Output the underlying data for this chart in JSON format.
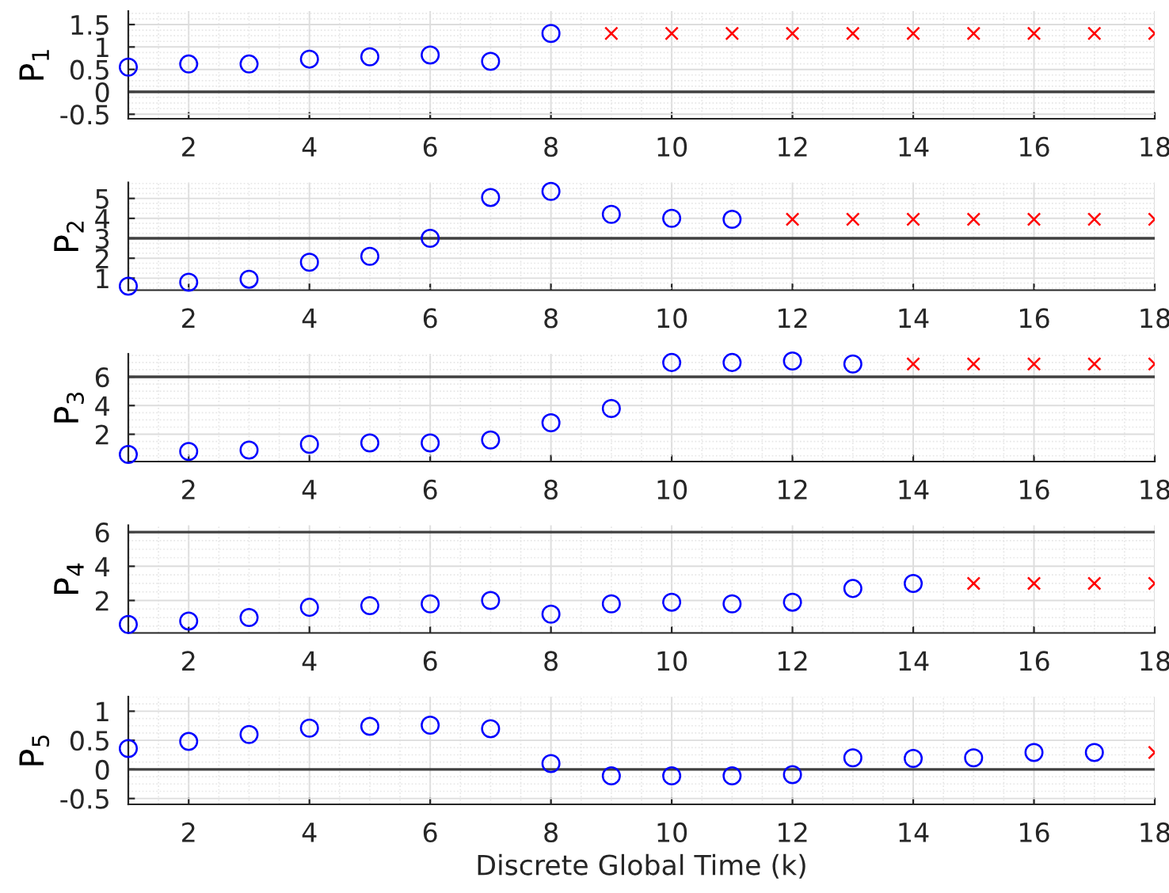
{
  "chart_data": [
    {
      "type": "scatter",
      "ylabel": "P$_{1}$",
      "xlim": [
        1,
        18
      ],
      "xticks": [
        2,
        4,
        6,
        8,
        10,
        12,
        14,
        16,
        18
      ],
      "ylim": [
        -0.6,
        1.8
      ],
      "yticks": [
        -0.5,
        0,
        0.5,
        1,
        1.5
      ],
      "grid": true,
      "ref_lines": [
        {
          "axis": "y",
          "value": 0,
          "color": "#404040"
        }
      ],
      "series": [
        {
          "color": "#0000ff",
          "marker": "circle",
          "x": [
            1,
            2,
            3,
            4,
            5,
            6,
            7,
            8
          ],
          "values": [
            0.55,
            0.62,
            0.62,
            0.73,
            0.78,
            0.82,
            0.68,
            1.3
          ]
        },
        {
          "color": "#ff0000",
          "marker": "cross",
          "x": [
            9,
            10,
            11,
            12,
            13,
            14,
            15,
            16,
            17,
            18
          ],
          "values": [
            1.3,
            1.3,
            1.3,
            1.3,
            1.3,
            1.3,
            1.3,
            1.3,
            1.3,
            1.3
          ]
        }
      ]
    },
    {
      "type": "scatter",
      "ylabel": "P$_{2}$",
      "xlim": [
        1,
        18
      ],
      "xticks": [
        2,
        4,
        6,
        8,
        10,
        12,
        14,
        16,
        18
      ],
      "ylim": [
        0.4,
        5.8
      ],
      "yticks": [
        1,
        2,
        3,
        4,
        5
      ],
      "grid": true,
      "ref_lines": [
        {
          "axis": "y",
          "value": 3,
          "color": "#404040"
        }
      ],
      "series": [
        {
          "color": "#0000ff",
          "marker": "circle",
          "x": [
            1,
            2,
            3,
            4,
            5,
            6,
            7,
            8,
            9,
            10,
            11
          ],
          "values": [
            0.6,
            0.8,
            0.95,
            1.8,
            2.1,
            3.0,
            5.05,
            5.35,
            4.2,
            4.0,
            3.95
          ]
        },
        {
          "color": "#ff0000",
          "marker": "cross",
          "x": [
            12,
            13,
            14,
            15,
            16,
            17,
            18
          ],
          "values": [
            3.95,
            3.95,
            3.95,
            3.95,
            3.95,
            3.95,
            3.95
          ]
        }
      ]
    },
    {
      "type": "scatter",
      "ylabel": "P$_{3}$",
      "xlim": [
        1,
        18
      ],
      "xticks": [
        2,
        4,
        6,
        8,
        10,
        12,
        14,
        16,
        18
      ],
      "ylim": [
        0.1,
        7.6
      ],
      "yticks": [
        2,
        4,
        6
      ],
      "grid": true,
      "ref_lines": [
        {
          "axis": "y",
          "value": 6,
          "color": "#404040"
        }
      ],
      "series": [
        {
          "color": "#0000ff",
          "marker": "circle",
          "x": [
            1,
            2,
            3,
            4,
            5,
            6,
            7,
            8,
            9,
            10,
            11,
            12,
            13
          ],
          "values": [
            0.6,
            0.8,
            0.9,
            1.3,
            1.4,
            1.4,
            1.6,
            2.8,
            3.8,
            7.0,
            7.0,
            7.1,
            6.9
          ]
        },
        {
          "color": "#ff0000",
          "marker": "cross",
          "x": [
            14,
            15,
            16,
            17,
            18
          ],
          "values": [
            6.9,
            6.9,
            6.9,
            6.9,
            6.9
          ]
        }
      ]
    },
    {
      "type": "scatter",
      "ylabel": "P$_{4}$",
      "xlim": [
        1,
        18
      ],
      "xticks": [
        2,
        4,
        6,
        8,
        10,
        12,
        14,
        16,
        18
      ],
      "ylim": [
        0.1,
        6.4
      ],
      "yticks": [
        2,
        4,
        6
      ],
      "grid": true,
      "ref_lines": [
        {
          "axis": "y",
          "value": 6,
          "color": "#404040"
        }
      ],
      "series": [
        {
          "color": "#0000ff",
          "marker": "circle",
          "x": [
            1,
            2,
            3,
            4,
            5,
            6,
            7,
            8,
            9,
            10,
            11,
            12,
            13,
            14
          ],
          "values": [
            0.6,
            0.8,
            1.0,
            1.6,
            1.7,
            1.8,
            2.0,
            1.2,
            1.8,
            1.9,
            1.8,
            1.9,
            2.7,
            3.0
          ]
        },
        {
          "color": "#ff0000",
          "marker": "cross",
          "x": [
            15,
            16,
            17,
            18
          ],
          "values": [
            3.0,
            3.0,
            3.0,
            3.0
          ]
        }
      ]
    },
    {
      "type": "scatter",
      "ylabel": "P$_{5}$",
      "xlabel": "Discrete Global Time (k)",
      "xlim": [
        1,
        18
      ],
      "xticks": [
        2,
        4,
        6,
        8,
        10,
        12,
        14,
        16,
        18
      ],
      "ylim": [
        -0.6,
        1.25
      ],
      "yticks": [
        -0.5,
        0,
        0.5,
        1
      ],
      "grid": true,
      "ref_lines": [
        {
          "axis": "y",
          "value": 0,
          "color": "#404040"
        }
      ],
      "series": [
        {
          "color": "#0000ff",
          "marker": "circle",
          "x": [
            1,
            2,
            3,
            4,
            5,
            6,
            7,
            8,
            9,
            10,
            11,
            12,
            13,
            14,
            15,
            16,
            17
          ],
          "values": [
            0.36,
            0.48,
            0.6,
            0.71,
            0.74,
            0.76,
            0.7,
            0.1,
            -0.11,
            -0.11,
            -0.11,
            -0.09,
            0.2,
            0.19,
            0.2,
            0.29,
            0.29
          ]
        },
        {
          "color": "#ff0000",
          "marker": "cross",
          "x": [
            18
          ],
          "values": [
            0.29
          ]
        }
      ]
    }
  ]
}
